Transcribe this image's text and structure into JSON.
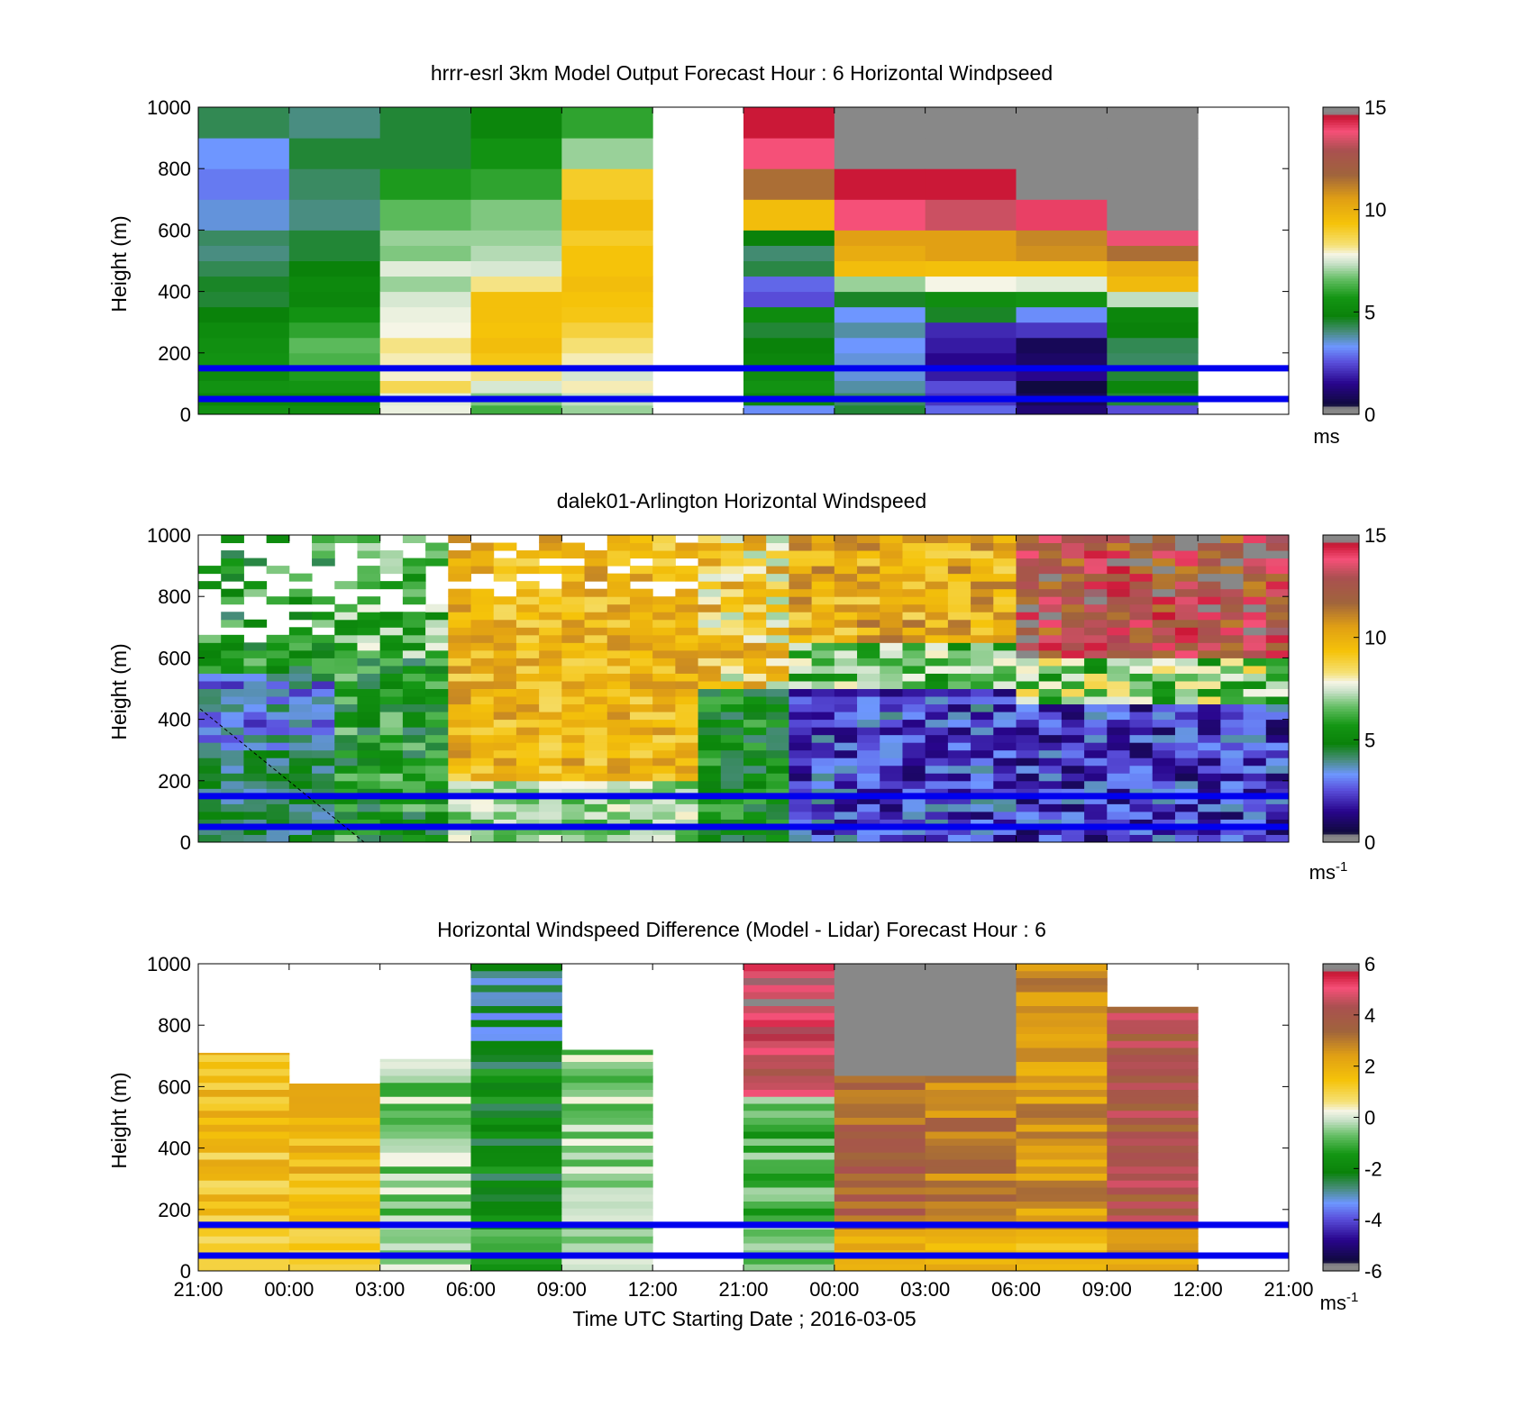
{
  "chart_data": [
    {
      "type": "heatmap",
      "title": "hrrr-esrl 3km Model Output   Forecast Hour : 6 Horizontal Windpseed",
      "ylabel": "Height (m)",
      "ylim": [
        0,
        1000
      ],
      "yticks": [
        "0",
        "200",
        "400",
        "600",
        "800",
        "1000"
      ],
      "colorbar": {
        "ticks": [
          "0",
          "5",
          "10",
          "15"
        ],
        "range": [
          0,
          15
        ],
        "unit": "ms"
      },
      "reference_lines_m": [
        150,
        50
      ],
      "x_blocks": 12,
      "missing_blocks": [
        5,
        11
      ],
      "levels_m": [
        30,
        70,
        110,
        150,
        200,
        250,
        300,
        350,
        400,
        450,
        500,
        550,
        600,
        700,
        800,
        900,
        1000
      ],
      "values": [
        [
          5.5,
          5.3,
          7.7,
          6.2,
          7.0,
          null,
          3.2,
          4.5,
          2.8,
          1.2,
          2.5,
          null
        ],
        [
          5.0,
          5.0,
          7.6,
          6.8,
          7.3,
          null,
          5.0,
          4.2,
          2.2,
          0.8,
          4.5,
          null
        ],
        [
          5.5,
          5.6,
          8.6,
          7.5,
          8.0,
          null,
          5.5,
          3.8,
          2.5,
          0.5,
          5.0,
          null
        ],
        [
          5.2,
          5.8,
          7.9,
          8.2,
          7.5,
          null,
          5.3,
          3.5,
          1.8,
          1.5,
          4.5,
          null
        ],
        [
          5.5,
          6.3,
          8.0,
          9.2,
          8.0,
          null,
          5.0,
          3.5,
          1.5,
          1.0,
          4.2,
          null
        ],
        [
          5.4,
          6.5,
          8.2,
          9.5,
          8.3,
          null,
          4.8,
          3.3,
          1.8,
          0.8,
          4.3,
          null
        ],
        [
          5.2,
          6.0,
          7.8,
          9.3,
          8.8,
          null,
          4.5,
          3.8,
          2.0,
          2.2,
          4.8,
          null
        ],
        [
          4.8,
          5.5,
          7.7,
          9.4,
          9.2,
          null,
          5.2,
          3.3,
          4.6,
          3.2,
          5.0,
          null
        ],
        [
          4.5,
          5.0,
          7.5,
          9.4,
          9.3,
          null,
          2.5,
          4.6,
          5.3,
          5.5,
          7.3,
          null
        ],
        [
          4.6,
          5.1,
          7.0,
          8.2,
          9.5,
          null,
          2.8,
          7.0,
          7.8,
          7.6,
          9.6,
          null
        ],
        [
          4.3,
          4.8,
          7.6,
          7.5,
          9.3,
          null,
          4.4,
          9.5,
          9.4,
          9.4,
          10.1,
          null
        ],
        [
          4.0,
          4.5,
          6.8,
          7.2,
          9.3,
          null,
          4.1,
          10.1,
          10.5,
          10.8,
          11.5,
          null
        ],
        [
          4.2,
          4.5,
          7.0,
          7.0,
          9.0,
          null,
          4.8,
          10.5,
          10.5,
          11.0,
          13.7,
          null
        ],
        [
          3.5,
          4.0,
          6.5,
          6.8,
          9.5,
          null,
          9.5,
          13.8,
          13.3,
          14.0,
          15.5,
          null
        ],
        [
          3.0,
          4.2,
          5.8,
          6.0,
          9.0,
          null,
          11.5,
          14.5,
          14.5,
          15.5,
          15.5,
          null
        ],
        [
          3.3,
          4.5,
          4.5,
          5.5,
          7.0,
          null,
          13.8,
          15.5,
          15.5,
          15.5,
          15.5,
          null
        ],
        [
          4.3,
          4.0,
          4.5,
          5.0,
          6.0,
          null,
          14.5,
          15.5,
          15.5,
          15.5,
          15.5,
          null
        ]
      ]
    },
    {
      "type": "heatmap",
      "title": "dalek01-Arlington  Horizontal Windspeed",
      "ylabel": "Height (m)",
      "ylim": [
        0,
        1000
      ],
      "yticks": [
        "0",
        "200",
        "400",
        "600",
        "800",
        "1000"
      ],
      "colorbar": {
        "ticks": [
          "0",
          "5",
          "10",
          "15"
        ],
        "range": [
          0,
          15
        ],
        "unit": "ms",
        "unit_exponent": "-1"
      },
      "reference_lines_m": [
        150,
        50
      ],
      "x_columns": 48,
      "description_note": "lidar profile, high-resolution columns spanning 21:00 to 21:00",
      "dashed_line": true
    },
    {
      "type": "heatmap",
      "title": "Horizontal Windspeed Difference (Model - Lidar) Forecast Hour : 6",
      "ylabel": "Height (m)",
      "xlabel": "Time UTC  Starting Date ; 2016-03-05",
      "ylim": [
        0,
        1000
      ],
      "yticks": [
        "0",
        "200",
        "400",
        "600",
        "800",
        "1000"
      ],
      "xticks": [
        "21:00",
        "00:00",
        "03:00",
        "06:00",
        "09:00",
        "12:00",
        "21:00",
        "00:00",
        "03:00",
        "06:00",
        "09:00",
        "12:00",
        "21:00"
      ],
      "colorbar": {
        "ticks": [
          "-6",
          "-4",
          "-2",
          "0",
          "2",
          "4",
          "6"
        ],
        "range": [
          -6,
          6
        ],
        "unit": "ms",
        "unit_exponent": "-1"
      },
      "reference_lines_m": [
        150,
        50
      ],
      "x_blocks": 12,
      "column_tops_m": [
        710,
        610,
        690,
        1000,
        720,
        null,
        1000,
        1000,
        1000,
        1000,
        860,
        null
      ]
    }
  ]
}
